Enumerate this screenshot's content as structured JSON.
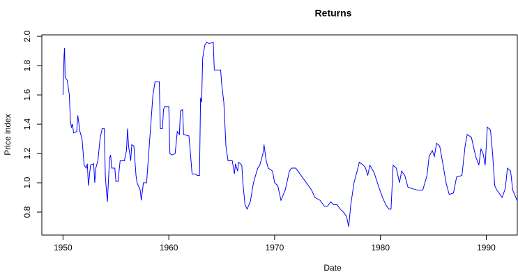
{
  "chart_data": {
    "type": "line",
    "title": "Returns",
    "x_label": "Date",
    "y_label": "Price index",
    "x": [
      1950.0,
      1950.1,
      1950.15,
      1950.2,
      1950.4,
      1950.6,
      1950.7,
      1950.8,
      1950.9,
      1951.0,
      1951.3,
      1951.4,
      1951.6,
      1951.8,
      1952.0,
      1952.2,
      1952.3,
      1952.4,
      1952.6,
      1952.9,
      1953.0,
      1953.1,
      1953.3,
      1953.5,
      1953.7,
      1953.9,
      1954.0,
      1954.1,
      1954.2,
      1954.4,
      1954.5,
      1954.6,
      1954.9,
      1955.0,
      1955.2,
      1955.4,
      1955.8,
      1956.0,
      1956.1,
      1956.2,
      1956.4,
      1956.5,
      1956.7,
      1956.9,
      1957.0,
      1957.3,
      1957.4,
      1957.6,
      1957.9,
      1958.0,
      1958.3,
      1958.5,
      1958.7,
      1959.1,
      1959.2,
      1959.4,
      1959.5,
      1959.6,
      1960.0,
      1960.1,
      1960.3,
      1960.6,
      1960.8,
      1961.0,
      1961.1,
      1961.3,
      1961.4,
      1961.9,
      1962.0,
      1962.2,
      1962.5,
      1962.7,
      1962.9,
      1963.0,
      1963.1,
      1963.2,
      1963.4,
      1963.6,
      1963.8,
      1964.2,
      1964.3,
      1964.9,
      1965.0,
      1965.2,
      1965.4,
      1965.6,
      1966.0,
      1966.2,
      1966.3,
      1966.5,
      1966.6,
      1966.9,
      1967.0,
      1967.2,
      1967.4,
      1967.7,
      1968.0,
      1968.2,
      1968.4,
      1968.6,
      1968.9,
      1969.0,
      1969.2,
      1969.4,
      1969.8,
      1970.0,
      1970.3,
      1970.6,
      1971.0,
      1971.4,
      1971.6,
      1972.0,
      1972.5,
      1973.0,
      1973.5,
      1973.8,
      1974.3,
      1974.7,
      1975.0,
      1975.3,
      1975.6,
      1975.9,
      1976.2,
      1976.5,
      1976.8,
      1977.0,
      1977.2,
      1977.5,
      1977.8,
      1978.0,
      1978.4,
      1978.6,
      1978.8,
      1979.0,
      1979.4,
      1979.8,
      1980.2,
      1980.5,
      1980.8,
      1981.0,
      1981.2,
      1981.5,
      1981.8,
      1982.0,
      1982.3,
      1982.6,
      1983.0,
      1983.5,
      1984.0,
      1984.4,
      1984.6,
      1984.9,
      1985.1,
      1985.3,
      1985.6,
      1985.9,
      1986.2,
      1986.5,
      1986.9,
      1987.2,
      1987.7,
      1988.0,
      1988.2,
      1988.6,
      1989.0,
      1989.3,
      1989.5,
      1989.7,
      1989.9,
      1990.1,
      1990.4,
      1990.6,
      1990.8,
      1991.0,
      1991.5,
      1991.8,
      1992.0,
      1992.3,
      1992.5,
      1992.8,
      1992.95
    ],
    "series": [
      {
        "color": "#0000ff",
        "values": [
          1.6,
          1.87,
          1.92,
          1.72,
          1.7,
          1.6,
          1.42,
          1.38,
          1.4,
          1.34,
          1.35,
          1.46,
          1.35,
          1.3,
          1.12,
          1.1,
          1.13,
          0.98,
          1.12,
          1.13,
          1.0,
          1.1,
          1.15,
          1.3,
          1.37,
          1.37,
          1.05,
          0.95,
          0.87,
          1.17,
          1.19,
          1.1,
          1.1,
          1.01,
          1.01,
          1.15,
          1.15,
          1.22,
          1.37,
          1.25,
          1.15,
          1.26,
          1.25,
          1.05,
          1.0,
          0.95,
          0.88,
          1.0,
          1.0,
          1.1,
          1.4,
          1.6,
          1.69,
          1.69,
          1.37,
          1.37,
          1.5,
          1.52,
          1.52,
          1.2,
          1.19,
          1.2,
          1.35,
          1.33,
          1.49,
          1.5,
          1.33,
          1.32,
          1.24,
          1.06,
          1.06,
          1.05,
          1.05,
          1.58,
          1.55,
          1.85,
          1.94,
          1.96,
          1.95,
          1.96,
          1.77,
          1.77,
          1.67,
          1.55,
          1.25,
          1.15,
          1.15,
          1.06,
          1.13,
          1.08,
          1.14,
          1.12,
          1.0,
          0.85,
          0.82,
          0.87,
          1.0,
          1.05,
          1.1,
          1.12,
          1.2,
          1.26,
          1.15,
          1.1,
          1.08,
          1.0,
          0.98,
          0.88,
          0.95,
          1.08,
          1.1,
          1.1,
          1.05,
          1.0,
          0.95,
          0.9,
          0.88,
          0.84,
          0.84,
          0.87,
          0.85,
          0.85,
          0.82,
          0.8,
          0.77,
          0.7,
          0.85,
          1.0,
          1.08,
          1.14,
          1.12,
          1.1,
          1.05,
          1.12,
          1.07,
          0.98,
          0.9,
          0.85,
          0.82,
          0.82,
          1.12,
          1.1,
          1.0,
          1.08,
          1.05,
          0.97,
          0.96,
          0.95,
          0.95,
          1.05,
          1.18,
          1.22,
          1.18,
          1.27,
          1.25,
          1.13,
          1.0,
          0.92,
          0.93,
          1.04,
          1.05,
          1.25,
          1.33,
          1.31,
          1.18,
          1.12,
          1.23,
          1.2,
          1.12,
          1.38,
          1.36,
          1.2,
          0.98,
          0.95,
          0.9,
          0.96,
          1.1,
          1.08,
          0.95,
          0.9,
          0.87
        ]
      }
    ],
    "xlim": [
      1948.0,
      1993.0
    ],
    "xticks": [
      1950,
      1960,
      1970,
      1980,
      1990
    ],
    "ylim": [
      0.643,
      2.01
    ],
    "yticks": [
      0.8,
      {
        "value": 1.0,
        "label": "1.0"
      },
      1.2,
      1.4,
      1.6,
      1.8,
      {
        "value": 2.0,
        "label": "2.0"
      }
    ]
  }
}
